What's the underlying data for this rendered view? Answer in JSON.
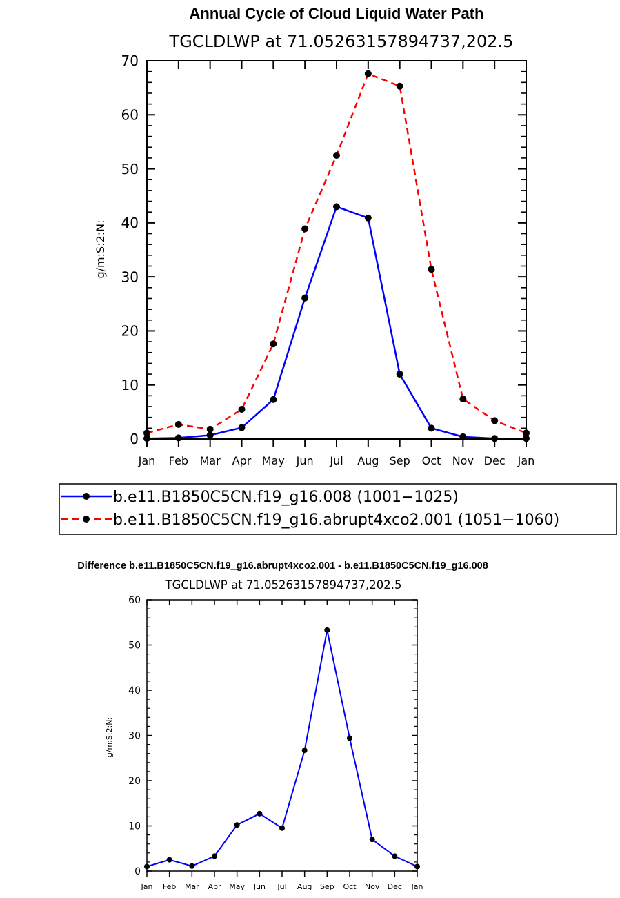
{
  "chart_data": [
    {
      "type": "line",
      "title": "Annual Cycle of Cloud Liquid Water Path",
      "subtitle": "TGCLDLWP  at  71.05263157894737,202.5",
      "xlabel": "",
      "ylabel": "g/m:S:2:N:",
      "categories": [
        "Jan",
        "Feb",
        "Mar",
        "Apr",
        "May",
        "Jun",
        "Jul",
        "Aug",
        "Sep",
        "Oct",
        "Nov",
        "Dec",
        "Jan"
      ],
      "ylim": [
        0,
        70
      ],
      "yticks": [
        0,
        10,
        20,
        30,
        40,
        50,
        60,
        70
      ],
      "ytick_labels": [
        "0",
        "10",
        "20",
        "30",
        "40",
        "50",
        "60",
        "70"
      ],
      "legend_position": "bottom",
      "series": [
        {
          "name": "b.e11.B1850C5CN.f19_g16.008 (1001−1025)",
          "color": "#0000ff",
          "style": "solid",
          "values": [
            0.1,
            0.2,
            0.7,
            2.1,
            7.3,
            26.1,
            43.0,
            40.9,
            12.0,
            2.0,
            0.4,
            0.1,
            0.1
          ]
        },
        {
          "name": "b.e11.B1850C5CN.f19_g16.abrupt4xco2.001 (1051−1060)",
          "color": "#ff0000",
          "style": "dashed",
          "values": [
            1.1,
            2.7,
            1.8,
            5.5,
            17.6,
            38.9,
            52.5,
            67.6,
            65.3,
            31.4,
            7.4,
            3.4,
            1.1
          ]
        }
      ]
    },
    {
      "type": "line",
      "title": "Difference b.e11.B1850C5CN.f19_g16.abrupt4xco2.001 - b.e11.B1850C5CN.f19_g16.008",
      "subtitle": "TGCLDLWP  at  71.05263157894737,202.5",
      "xlabel": "",
      "ylabel": "g/m:S:2:N:",
      "categories": [
        "Jan",
        "Feb",
        "Mar",
        "Apr",
        "May",
        "Jun",
        "Jul",
        "Aug",
        "Sep",
        "Oct",
        "Nov",
        "Dec",
        "Jan"
      ],
      "ylim": [
        0,
        60
      ],
      "yticks": [
        0,
        10,
        20,
        30,
        40,
        50,
        60
      ],
      "ytick_labels": [
        "0",
        "10",
        "20",
        "30",
        "40",
        "50",
        "60"
      ],
      "series": [
        {
          "name": "",
          "color": "#0000ff",
          "style": "solid",
          "values": [
            1.0,
            2.5,
            1.1,
            3.3,
            10.2,
            12.7,
            9.5,
            26.7,
            53.3,
            29.4,
            7.0,
            3.3,
            1.0
          ]
        }
      ]
    }
  ]
}
